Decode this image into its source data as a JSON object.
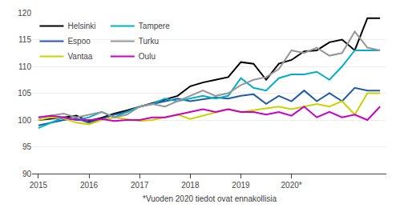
{
  "chart_data": {
    "type": "line",
    "footnote": "*Vuoden 2020 tiedot ovat ennakollisia",
    "categories": [
      "2015",
      null,
      null,
      null,
      "2016",
      null,
      null,
      null,
      "2017",
      null,
      null,
      null,
      "2018",
      null,
      null,
      null,
      "2019",
      null,
      null,
      null,
      "2020*",
      null,
      null,
      null,
      null,
      null,
      null,
      null
    ],
    "series": [
      {
        "name": "Helsinki",
        "color": "#000000",
        "values": [
          100.0,
          100.2,
          100.5,
          100.8,
          99.8,
          100.4,
          101.2,
          101.8,
          102.5,
          103.2,
          103.8,
          104.5,
          106.3,
          107.0,
          107.5,
          108.0,
          110.8,
          110.5,
          107.5,
          110.5,
          111.2,
          112.8,
          113.0,
          114.5,
          115.0,
          113.0,
          119.0,
          119.0
        ]
      },
      {
        "name": "Espoo",
        "color": "#1f5ba8",
        "values": [
          99.0,
          99.5,
          100.0,
          100.3,
          99.5,
          100.2,
          101.0,
          101.5,
          102.5,
          103.0,
          103.5,
          104.0,
          103.5,
          103.8,
          104.2,
          104.0,
          104.5,
          104.8,
          103.0,
          104.5,
          103.5,
          105.5,
          103.5,
          105.0,
          103.5,
          106.0,
          105.5,
          105.5
        ]
      },
      {
        "name": "Vantaa",
        "color": "#c8d400",
        "values": [
          100.0,
          100.5,
          100.3,
          99.5,
          99.2,
          100.0,
          100.5,
          100.2,
          99.8,
          100.0,
          100.5,
          101.0,
          100.2,
          100.8,
          101.5,
          102.0,
          101.5,
          101.8,
          102.2,
          102.5,
          102.0,
          102.5,
          103.0,
          102.5,
          103.5,
          101.0,
          105.0,
          105.0
        ]
      },
      {
        "name": "Tampere",
        "color": "#00b0c8",
        "values": [
          98.5,
          99.5,
          100.5,
          100.0,
          100.5,
          101.5,
          100.5,
          101.5,
          102.5,
          103.0,
          104.0,
          103.5,
          104.0,
          104.5,
          104.0,
          104.5,
          107.8,
          106.0,
          105.5,
          107.8,
          108.5,
          108.5,
          109.0,
          107.5,
          110.0,
          113.0,
          113.0,
          113.0
        ]
      },
      {
        "name": "Turku",
        "color": "#969696",
        "values": [
          100.5,
          100.8,
          101.2,
          100.5,
          101.0,
          101.5,
          100.5,
          101.0,
          102.5,
          103.0,
          102.5,
          103.5,
          104.5,
          105.5,
          104.5,
          105.0,
          106.5,
          107.5,
          108.0,
          109.5,
          113.0,
          112.5,
          113.5,
          112.0,
          112.5,
          116.5,
          113.5,
          113.0
        ]
      },
      {
        "name": "Oulu",
        "color": "#c800c8",
        "values": [
          100.5,
          100.8,
          100.5,
          100.0,
          100.0,
          100.2,
          99.8,
          100.0,
          100.0,
          100.5,
          100.5,
          101.0,
          101.5,
          102.0,
          101.5,
          102.0,
          101.5,
          101.5,
          101.0,
          101.5,
          100.8,
          102.5,
          100.5,
          101.5,
          100.5,
          101.0,
          100.0,
          102.5
        ]
      }
    ],
    "ylim": [
      90,
      120
    ],
    "yticks": [
      90,
      95,
      100,
      105,
      110,
      115,
      120
    ],
    "grid": true,
    "legend": "upper left"
  }
}
